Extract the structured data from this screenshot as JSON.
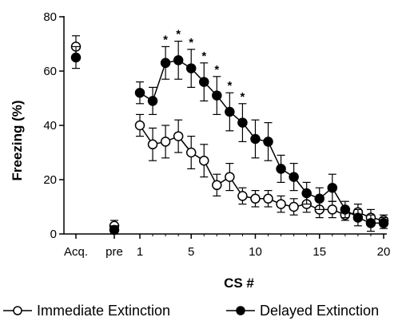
{
  "chart_data": {
    "type": "line",
    "title": "",
    "xlabel": "CS #",
    "ylabel": "Freezing (%)",
    "ylim": [
      0,
      80
    ],
    "yticks": [
      0,
      20,
      40,
      60,
      80
    ],
    "xticks": [
      {
        "label": "Acq.",
        "x": "acq"
      },
      {
        "label": "pre",
        "x": "pre"
      },
      {
        "label": "1",
        "x": 1
      },
      {
        "label": "5",
        "x": 5
      },
      {
        "label": "10",
        "x": 10
      },
      {
        "label": "15",
        "x": 15
      },
      {
        "label": "20",
        "x": 20
      }
    ],
    "legend_position": "bottom",
    "series": [
      {
        "name": "Immediate Extinction",
        "marker": "open-circle",
        "color": "#000000",
        "acq": {
          "value": 69,
          "error": 4
        },
        "pre": {
          "value": 3,
          "error": 2
        },
        "x": [
          1,
          2,
          3,
          4,
          5,
          6,
          7,
          8,
          9,
          10,
          11,
          12,
          13,
          14,
          15,
          16,
          17,
          18,
          19,
          20
        ],
        "values": [
          40,
          33,
          34,
          36,
          30,
          27,
          18,
          21,
          14,
          13,
          13,
          11,
          10,
          11,
          9,
          9,
          7,
          8,
          6,
          5
        ],
        "errors": [
          4,
          6,
          6,
          6,
          6,
          6,
          4,
          5,
          3,
          3,
          3,
          3,
          3,
          3,
          3,
          3,
          2,
          3,
          3,
          2
        ]
      },
      {
        "name": "Delayed Extinction",
        "marker": "filled-circle",
        "color": "#000000",
        "acq": {
          "value": 65,
          "error": 4
        },
        "pre": {
          "value": 1.5,
          "error": 1.5
        },
        "x": [
          1,
          2,
          3,
          4,
          5,
          6,
          7,
          8,
          9,
          10,
          11,
          12,
          13,
          14,
          15,
          16,
          17,
          18,
          19,
          20
        ],
        "values": [
          52,
          49,
          63,
          64,
          61,
          56,
          51,
          45,
          41,
          35,
          34,
          24,
          21,
          15,
          13,
          17,
          9,
          6,
          4,
          4
        ],
        "errors": [
          4,
          5,
          6,
          7,
          7,
          7,
          7,
          7,
          7,
          7,
          7,
          5,
          5,
          4,
          4,
          5,
          3,
          3,
          3,
          2
        ]
      }
    ],
    "significance": {
      "symbol": "*",
      "x": [
        3,
        4,
        5,
        6,
        7,
        8,
        9
      ]
    }
  }
}
